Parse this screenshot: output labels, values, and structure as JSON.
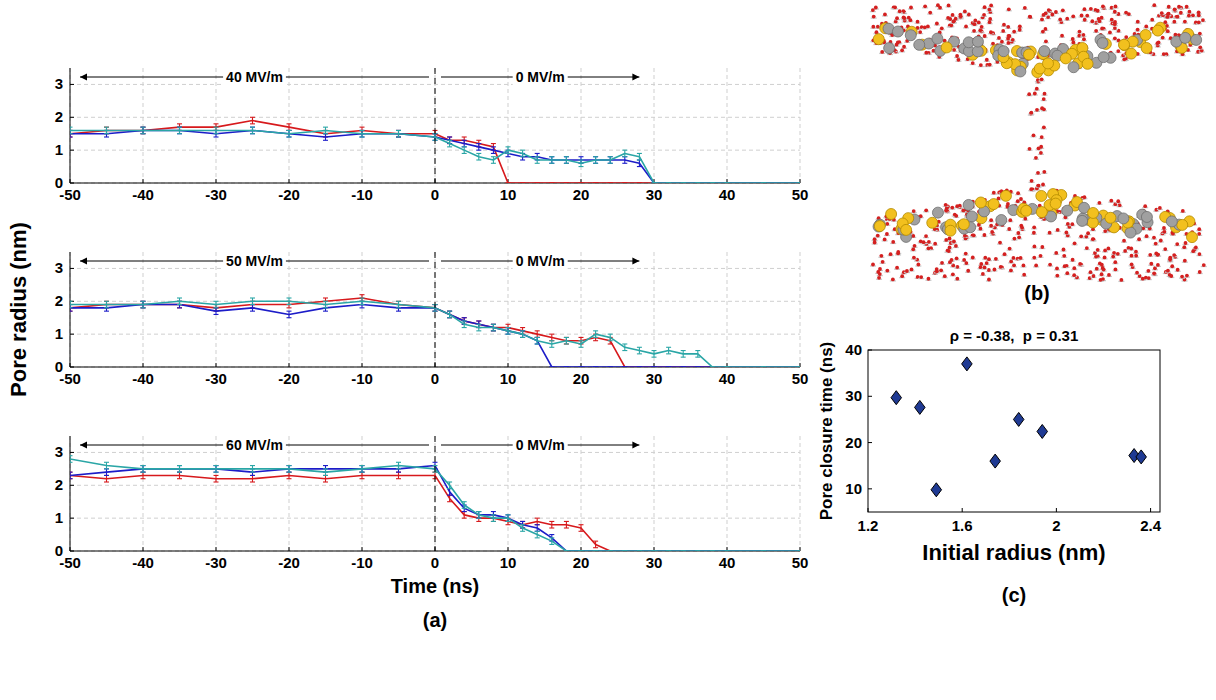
{
  "chart_data": [
    {
      "type": "line",
      "ylabel": "Pore radius (nm)",
      "annotations": [
        "40 MV/m",
        "0 MV/m"
      ],
      "field_switch": 0,
      "x": [
        -50,
        -45,
        -40,
        -35,
        -30,
        -25,
        -20,
        -15,
        -10,
        -5,
        0,
        2,
        4,
        6,
        8,
        10,
        12,
        14,
        16,
        18,
        20,
        22,
        24,
        26,
        28,
        30,
        32,
        34,
        36,
        38,
        40,
        45,
        50
      ],
      "xlim": [
        -50,
        50
      ],
      "xticks": [
        -50,
        -40,
        -30,
        -20,
        -10,
        0,
        10,
        20,
        30,
        40,
        50
      ],
      "ylim": [
        0,
        3.5
      ],
      "yticks": [
        0,
        1,
        2,
        3
      ],
      "grid": true,
      "series": [
        {
          "color": "#d7191c",
          "values": [
            1.5,
            1.6,
            1.6,
            1.7,
            1.7,
            1.9,
            1.7,
            1.5,
            1.6,
            1.5,
            1.5,
            1.3,
            1.3,
            1.2,
            1.1,
            0,
            0,
            0,
            0,
            0,
            0,
            0,
            0,
            0,
            0,
            0,
            0,
            0,
            0,
            0,
            0,
            0,
            0
          ],
          "errors": [
            0.1,
            0.1,
            0.1,
            0.1,
            0.1,
            0.1,
            0.1,
            0.1,
            0.1,
            0.1,
            0.1,
            0.1,
            0.1,
            0.1,
            0.1,
            0,
            0,
            0,
            0,
            0,
            0,
            0,
            0,
            0,
            0,
            0,
            0,
            0,
            0,
            0,
            0,
            0,
            0
          ]
        },
        {
          "color": "#1c1cc8",
          "values": [
            1.5,
            1.5,
            1.6,
            1.6,
            1.5,
            1.6,
            1.5,
            1.4,
            1.5,
            1.5,
            1.4,
            1.3,
            1.2,
            1.1,
            1.0,
            0.9,
            0.8,
            0.8,
            0.7,
            0.7,
            0.7,
            0.7,
            0.7,
            0.7,
            0.6,
            0,
            0,
            0,
            0,
            0,
            0,
            0,
            0
          ],
          "errors": [
            0.1,
            0.1,
            0.1,
            0.1,
            0.1,
            0.1,
            0.1,
            0.1,
            0.1,
            0.1,
            0.1,
            0.1,
            0.1,
            0.1,
            0.1,
            0.1,
            0.1,
            0.1,
            0.1,
            0.1,
            0.1,
            0.1,
            0.1,
            0.1,
            0.1,
            0,
            0,
            0,
            0,
            0,
            0,
            0,
            0
          ]
        },
        {
          "color": "#2aa6a6",
          "values": [
            1.6,
            1.6,
            1.6,
            1.6,
            1.6,
            1.6,
            1.5,
            1.6,
            1.5,
            1.5,
            1.4,
            1.2,
            1.0,
            0.8,
            0.7,
            1.0,
            0.9,
            0.7,
            0.7,
            0.7,
            0.6,
            0.7,
            0.7,
            0.9,
            0.8,
            0,
            0,
            0,
            0,
            0,
            0,
            0,
            0
          ],
          "errors": [
            0.1,
            0.1,
            0.1,
            0.1,
            0.1,
            0.1,
            0.1,
            0.1,
            0.1,
            0.1,
            0.1,
            0.1,
            0.1,
            0.1,
            0.1,
            0.1,
            0.1,
            0.1,
            0.1,
            0.1,
            0.1,
            0.1,
            0.1,
            0.1,
            0.1,
            0,
            0,
            0,
            0,
            0,
            0,
            0,
            0
          ]
        }
      ]
    },
    {
      "type": "line",
      "annotations": [
        "50 MV/m",
        "0 MV/m"
      ],
      "field_switch": 0,
      "x": [
        -50,
        -45,
        -40,
        -35,
        -30,
        -25,
        -20,
        -15,
        -10,
        -5,
        0,
        2,
        4,
        6,
        8,
        10,
        12,
        14,
        16,
        18,
        20,
        22,
        24,
        26,
        28,
        30,
        32,
        34,
        36,
        38,
        40,
        45,
        50
      ],
      "xlim": [
        -50,
        50
      ],
      "xticks": [
        -50,
        -40,
        -30,
        -20,
        -10,
        0,
        10,
        20,
        30,
        40,
        50
      ],
      "ylim": [
        0,
        3.5
      ],
      "yticks": [
        0,
        1,
        2,
        3
      ],
      "grid": true,
      "series": [
        {
          "color": "#d7191c",
          "values": [
            1.8,
            1.9,
            1.9,
            1.9,
            1.8,
            1.9,
            1.9,
            2.0,
            2.1,
            1.9,
            1.8,
            1.6,
            1.4,
            1.3,
            1.2,
            1.2,
            1.1,
            1.0,
            0.9,
            0.8,
            0.8,
            0.9,
            0.8,
            0,
            0,
            0,
            0,
            0,
            0,
            0,
            0,
            0,
            0
          ],
          "errors": [
            0.1,
            0.1,
            0.1,
            0.1,
            0.1,
            0.1,
            0.1,
            0.1,
            0.1,
            0.1,
            0.1,
            0.1,
            0.1,
            0.1,
            0.1,
            0.1,
            0.1,
            0.1,
            0.1,
            0.1,
            0.1,
            0.1,
            0.1,
            0,
            0,
            0,
            0,
            0,
            0,
            0,
            0,
            0,
            0
          ]
        },
        {
          "color": "#1c1cc8",
          "values": [
            1.8,
            1.8,
            1.9,
            1.9,
            1.7,
            1.8,
            1.6,
            1.8,
            1.9,
            1.8,
            1.8,
            1.6,
            1.4,
            1.3,
            1.2,
            1.1,
            1.0,
            0.8,
            0,
            0,
            0,
            0,
            0,
            0,
            0,
            0,
            0,
            0,
            0,
            0,
            0,
            0,
            0
          ],
          "errors": [
            0.1,
            0.1,
            0.1,
            0.1,
            0.1,
            0.1,
            0.1,
            0.1,
            0.1,
            0.1,
            0.1,
            0.1,
            0.1,
            0.1,
            0.1,
            0.1,
            0.1,
            0.1,
            0,
            0,
            0,
            0,
            0,
            0,
            0,
            0,
            0,
            0,
            0,
            0,
            0,
            0,
            0
          ]
        },
        {
          "color": "#2aa6a6",
          "values": [
            1.9,
            1.9,
            1.9,
            2.0,
            1.9,
            2.0,
            2.0,
            1.9,
            2.0,
            1.9,
            1.8,
            1.6,
            1.3,
            1.2,
            1.2,
            1.1,
            1.0,
            0.8,
            0.7,
            0.8,
            0.7,
            1.0,
            0.9,
            0.6,
            0.5,
            0.4,
            0.5,
            0.4,
            0.4,
            0,
            0,
            0,
            0
          ],
          "errors": [
            0.1,
            0.1,
            0.1,
            0.1,
            0.1,
            0.1,
            0.1,
            0.1,
            0.1,
            0.1,
            0.1,
            0.1,
            0.1,
            0.1,
            0.1,
            0.1,
            0.1,
            0.1,
            0.1,
            0.1,
            0.1,
            0.1,
            0.1,
            0.1,
            0.1,
            0.1,
            0.1,
            0.1,
            0.1,
            0,
            0,
            0,
            0
          ]
        }
      ]
    },
    {
      "type": "line",
      "annotations": [
        "60 MV/m",
        "0 MV/m"
      ],
      "field_switch": 0,
      "xlabel": "Time (ns)",
      "panel_label": "(a)",
      "x": [
        -50,
        -45,
        -40,
        -35,
        -30,
        -25,
        -20,
        -15,
        -10,
        -5,
        0,
        2,
        4,
        6,
        8,
        10,
        12,
        14,
        16,
        18,
        20,
        22,
        24,
        26,
        28,
        30,
        32,
        34,
        36,
        38,
        40,
        45,
        50
      ],
      "xlim": [
        -50,
        50
      ],
      "xticks": [
        -50,
        -40,
        -30,
        -20,
        -10,
        0,
        10,
        20,
        30,
        40,
        50
      ],
      "ylim": [
        0,
        3.5
      ],
      "yticks": [
        0,
        1,
        2,
        3
      ],
      "grid": true,
      "series": [
        {
          "color": "#d7191c",
          "values": [
            2.3,
            2.2,
            2.3,
            2.3,
            2.2,
            2.2,
            2.3,
            2.2,
            2.3,
            2.3,
            2.3,
            1.6,
            1.1,
            1.0,
            1.0,
            0.9,
            0.8,
            0.9,
            0.8,
            0.8,
            0.7,
            0.2,
            0,
            0,
            0,
            0,
            0,
            0,
            0,
            0,
            0,
            0,
            0
          ],
          "errors": [
            0.1,
            0.1,
            0.1,
            0.1,
            0.1,
            0.1,
            0.1,
            0.1,
            0.1,
            0.1,
            0.1,
            0.1,
            0.1,
            0.1,
            0.1,
            0.1,
            0.1,
            0.1,
            0.1,
            0.1,
            0.1,
            0.1,
            0,
            0,
            0,
            0,
            0,
            0,
            0,
            0,
            0,
            0,
            0
          ]
        },
        {
          "color": "#1c1cc8",
          "values": [
            2.3,
            2.4,
            2.5,
            2.5,
            2.5,
            2.4,
            2.5,
            2.5,
            2.5,
            2.5,
            2.6,
            1.8,
            1.3,
            1.1,
            1.1,
            1.0,
            0.8,
            0.7,
            0.4,
            0,
            0,
            0,
            0,
            0,
            0,
            0,
            0,
            0,
            0,
            0,
            0,
            0,
            0
          ],
          "errors": [
            0.1,
            0.1,
            0.1,
            0.1,
            0.1,
            0.1,
            0.1,
            0.1,
            0.1,
            0.1,
            0.1,
            0.1,
            0.1,
            0.1,
            0.1,
            0.1,
            0.1,
            0.1,
            0.1,
            0,
            0,
            0,
            0,
            0,
            0,
            0,
            0,
            0,
            0,
            0,
            0,
            0,
            0
          ]
        },
        {
          "color": "#2aa6a6",
          "values": [
            2.8,
            2.6,
            2.5,
            2.5,
            2.5,
            2.5,
            2.5,
            2.4,
            2.5,
            2.6,
            2.5,
            2.0,
            1.4,
            1.1,
            1.0,
            1.0,
            0.7,
            0.5,
            0.3,
            0,
            0,
            0,
            0,
            0,
            0,
            0,
            0,
            0,
            0,
            0,
            0,
            0,
            0
          ],
          "errors": [
            0.1,
            0.1,
            0.1,
            0.1,
            0.1,
            0.1,
            0.1,
            0.1,
            0.1,
            0.1,
            0.1,
            0.1,
            0.1,
            0.1,
            0.1,
            0.1,
            0.1,
            0.1,
            0.1,
            0,
            0,
            0,
            0,
            0,
            0,
            0,
            0,
            0,
            0,
            0,
            0,
            0,
            0
          ]
        }
      ]
    },
    {
      "type": "scatter",
      "title": "ρ = -0.38,  p = 0.31",
      "xlabel": "Initial radius (nm)",
      "ylabel": "Pore closure time (ns)",
      "panel_label": "(c)",
      "x": [
        1.32,
        1.42,
        1.49,
        1.62,
        1.74,
        1.84,
        1.94,
        2.33,
        2.36
      ],
      "values": [
        29.7,
        27.6,
        9.8,
        37,
        16,
        25,
        22.4,
        17.2,
        16.9
      ],
      "xlim": [
        1.2,
        2.44
      ],
      "xticks": [
        1.2,
        1.6,
        2,
        2.4
      ],
      "ylim": [
        5,
        40
      ],
      "yticks": [
        10,
        20,
        30,
        40
      ],
      "grid": false,
      "marker": "diamond",
      "color": "#1f3a93"
    }
  ],
  "image": {
    "panel_label": "(b)"
  }
}
